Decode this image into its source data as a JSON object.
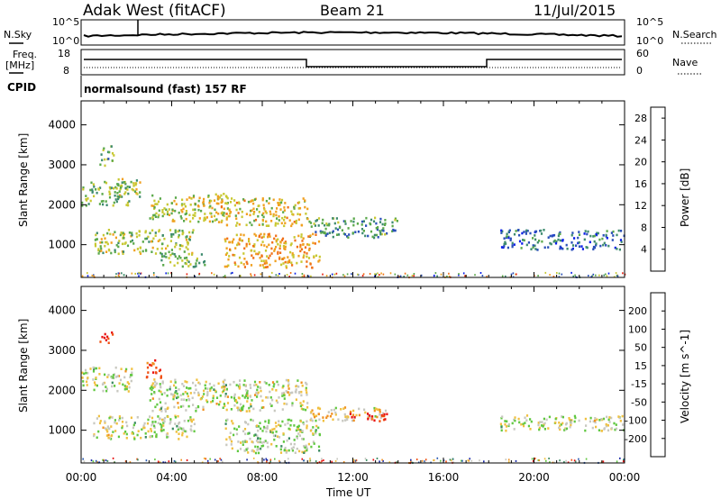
{
  "header": {
    "title": "Adak West (fitACF)",
    "beam": "Beam 21",
    "date": "11/Jul/2015"
  },
  "panels": {
    "nsky_label": "N.Sky",
    "nsearch_label": "N.Search",
    "nsky_ticks": [
      "10^5",
      "10^0"
    ],
    "nsearch_ticks": [
      "10^5",
      "10^0"
    ],
    "freq_label_top": "Freq.",
    "freq_label_unit": "[MHz]",
    "freq_ticks": [
      "18",
      "8"
    ],
    "nave_label": "Nave",
    "nave_ticks": [
      "60",
      "0"
    ],
    "cpid_label": "CPID",
    "cpid_value": "normalsound (fast) 157 RF"
  },
  "chart_data": [
    {
      "type": "heatmap",
      "name": "Power",
      "xlabel": "Time UT",
      "ylabel": "Slant Range [km]",
      "x_ticks": [
        "00:00",
        "04:00",
        "08:00",
        "12:00",
        "16:00",
        "20:00",
        "00:00"
      ],
      "xlim_hours": [
        0,
        24
      ],
      "ylim_km": [
        180,
        4600
      ],
      "y_ticks": [
        1000,
        2000,
        3000,
        4000
      ],
      "colorbar_label": "Power [dB]",
      "colorbar_ticks": [
        4,
        8,
        12,
        16,
        20,
        24,
        28
      ],
      "colorbar_range": [
        0,
        30
      ],
      "colors": [
        "#0a1ee8",
        "#2a4fb8",
        "#3d8a6e",
        "#5aa84a",
        "#c8c832",
        "#f0a020",
        "#f07018",
        "#e82010"
      ],
      "echo_regions": [
        {
          "t0": 0.0,
          "t1": 2.2,
          "r0": 2000,
          "r1": 2600,
          "level": 0.45
        },
        {
          "t0": 1.5,
          "t1": 2.6,
          "r0": 2200,
          "r1": 2700,
          "level": 0.5
        },
        {
          "t0": 3.0,
          "t1": 6.5,
          "r0": 1600,
          "r1": 2300,
          "level": 0.55
        },
        {
          "t0": 6.0,
          "t1": 10.0,
          "r0": 1500,
          "r1": 2200,
          "level": 0.6
        },
        {
          "t0": 10.0,
          "t1": 14.0,
          "r0": 1200,
          "r1": 1700,
          "level": 0.35
        },
        {
          "t0": 0.5,
          "t1": 5.0,
          "r0": 800,
          "r1": 1400,
          "level": 0.5
        },
        {
          "t0": 6.3,
          "t1": 10.5,
          "r0": 450,
          "r1": 1300,
          "level": 0.7
        },
        {
          "t0": 3.5,
          "t1": 5.5,
          "r0": 450,
          "r1": 800,
          "level": 0.45
        },
        {
          "t0": 18.5,
          "t1": 24.0,
          "r0": 900,
          "r1": 1400,
          "level": 0.25
        },
        {
          "t0": 0.8,
          "t1": 1.4,
          "r0": 3000,
          "r1": 3500,
          "level": 0.4
        }
      ]
    },
    {
      "type": "heatmap",
      "name": "Velocity",
      "xlabel": "Time UT",
      "ylabel": "Slant Range [km]",
      "x_ticks": [
        "00:00",
        "04:00",
        "08:00",
        "12:00",
        "16:00",
        "20:00",
        "00:00"
      ],
      "xlim_hours": [
        0,
        24
      ],
      "ylim_km": [
        180,
        4600
      ],
      "y_ticks": [
        1000,
        2000,
        3000,
        4000
      ],
      "colorbar_label": "Velocity [m s^-1]",
      "colorbar_ticks": [
        "200",
        "100",
        "50",
        "15",
        "-15",
        "-50",
        "-100",
        "-200"
      ],
      "colors": [
        "#1a2aa8",
        "#2a5ab0",
        "#3a8a60",
        "#60c840",
        "#c8c8c0",
        "#f0c040",
        "#f09020",
        "#f05010",
        "#e81010"
      ],
      "echo_regions": [
        {
          "t0": 0.0,
          "t1": 2.2,
          "r0": 2000,
          "r1": 2600,
          "level": 0.5
        },
        {
          "t0": 3.0,
          "t1": 10.0,
          "r0": 1500,
          "r1": 2300,
          "level": 0.5
        },
        {
          "t0": 10.0,
          "t1": 13.5,
          "r0": 1250,
          "r1": 1600,
          "level": 0.6
        },
        {
          "t0": 11.5,
          "t1": 13.5,
          "r0": 1250,
          "r1": 1450,
          "level": 0.9
        },
        {
          "t0": 0.5,
          "t1": 5.0,
          "r0": 800,
          "r1": 1400,
          "level": 0.5
        },
        {
          "t0": 6.3,
          "t1": 10.5,
          "r0": 450,
          "r1": 1300,
          "level": 0.48
        },
        {
          "t0": 18.5,
          "t1": 24.0,
          "r0": 1000,
          "r1": 1400,
          "level": 0.5
        },
        {
          "t0": 0.8,
          "t1": 1.4,
          "r0": 3200,
          "r1": 3500,
          "level": 0.95
        },
        {
          "t0": 2.8,
          "t1": 3.5,
          "r0": 2300,
          "r1": 2800,
          "level": 0.9
        }
      ]
    }
  ]
}
